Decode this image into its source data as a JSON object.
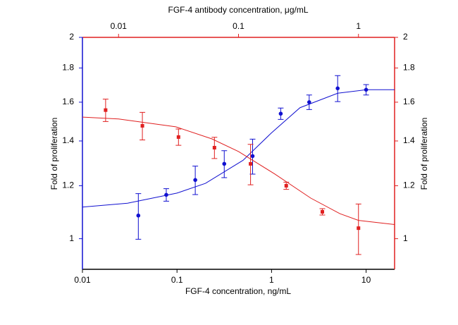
{
  "chart_data": {
    "type": "scatter",
    "xlabel": "FGF-4 concentration, ng/mL",
    "x2label": "FGF-4 antibody concentration, μg/mL",
    "ylabel": "Fold of proliferation",
    "y2label": "Fold of proliferation",
    "xscale": "log",
    "yscale": "log",
    "xlim": [
      0.01,
      20
    ],
    "xticks": [
      0.01,
      0.1,
      1,
      10
    ],
    "x2lim": [
      0.005,
      2
    ],
    "x2ticks": [
      0.01,
      0.1,
      1
    ],
    "ylim": [
      0.9,
      2
    ],
    "yticks": [
      1,
      1.2,
      1.4,
      1.6,
      1.8,
      2
    ],
    "y2lim": [
      0.9,
      2
    ],
    "y2ticks": [
      1,
      1.2,
      1.4,
      1.6,
      1.8,
      2
    ],
    "series": [
      {
        "color": "#1010d0",
        "marker": "circle",
        "axis": "x",
        "x": [
          0.039,
          0.077,
          0.156,
          0.316,
          0.63,
          1.25,
          2.5,
          5.0,
          10
        ],
        "values": [
          1.083,
          1.163,
          1.224,
          1.294,
          1.329,
          1.538,
          1.6,
          1.678,
          1.67
        ],
        "errors": [
          0.085,
          0.025,
          0.06,
          0.06,
          0.08,
          0.03,
          0.04,
          0.075,
          0.03
        ],
        "fit_x": [
          0.01,
          0.03,
          0.1,
          0.2,
          0.5,
          1,
          2,
          5,
          10,
          20
        ],
        "fit_values": [
          1.115,
          1.13,
          1.17,
          1.21,
          1.31,
          1.44,
          1.57,
          1.65,
          1.67,
          1.67
        ]
      },
      {
        "color": "#e02020",
        "marker": "square",
        "axis": "x2",
        "x": [
          0.0078,
          0.0158,
          0.0316,
          0.063,
          0.126,
          0.25,
          0.5,
          1
        ],
        "values": [
          1.557,
          1.475,
          1.419,
          1.368,
          1.294,
          1.2,
          1.097,
          1.037
        ],
        "errors": [
          0.06,
          0.07,
          0.04,
          0.05,
          0.09,
          0.015,
          0.012,
          0.09
        ],
        "fit_x": [
          0.005,
          0.01,
          0.03,
          0.06,
          0.1,
          0.2,
          0.4,
          0.7,
          1,
          2
        ],
        "fit_values": [
          1.52,
          1.51,
          1.47,
          1.41,
          1.35,
          1.25,
          1.15,
          1.09,
          1.065,
          1.05
        ]
      }
    ]
  }
}
